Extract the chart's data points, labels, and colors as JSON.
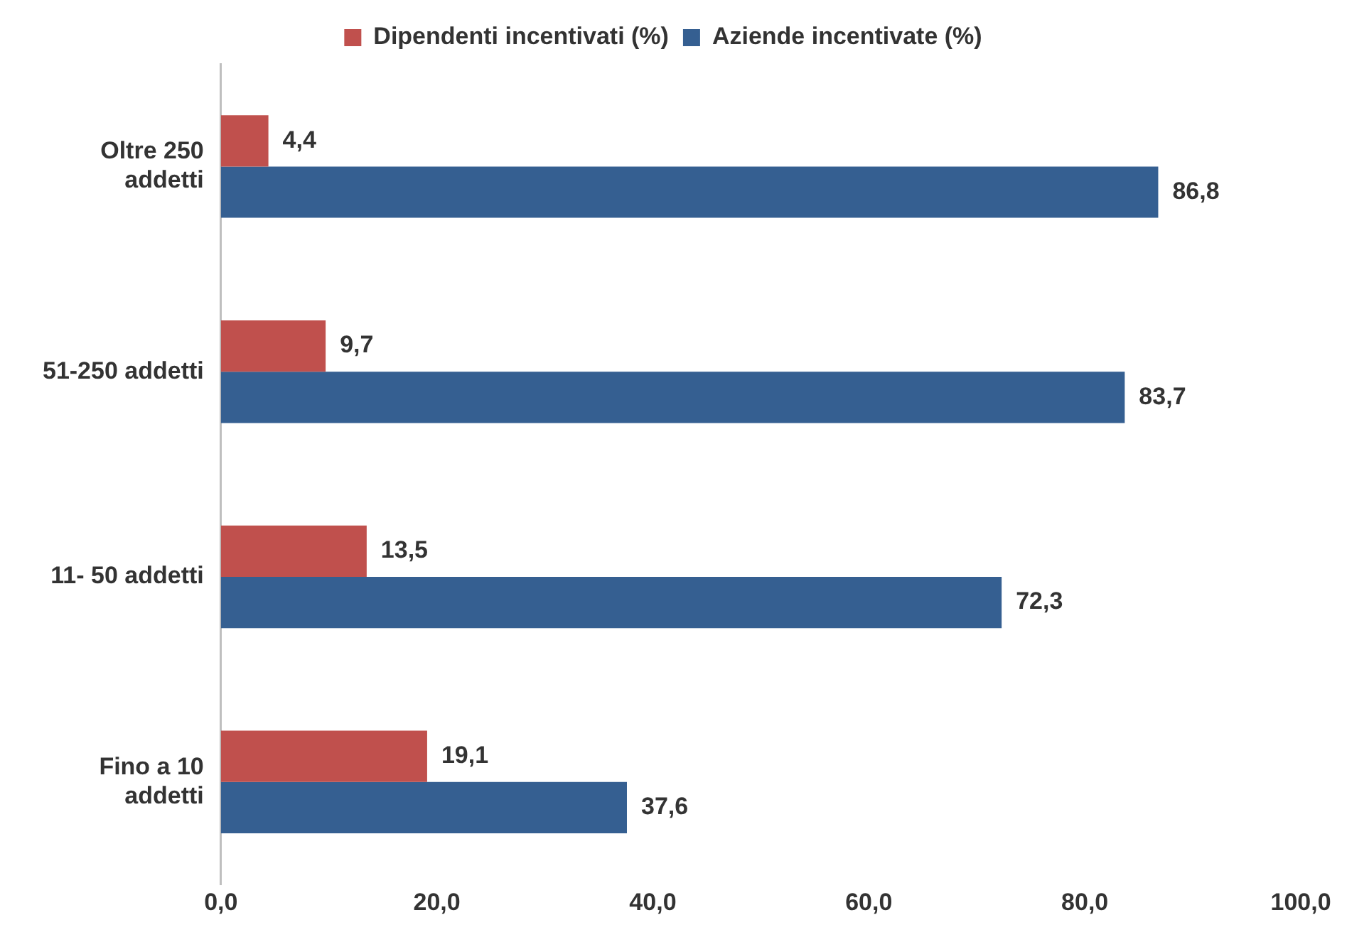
{
  "chart_data": {
    "type": "bar",
    "orientation": "horizontal",
    "categories": [
      "Oltre 250 addetti",
      "51-250 addetti",
      "11- 50 addetti",
      "Fino a 10 addetti"
    ],
    "series": [
      {
        "name": "Dipendenti incentivati (%)",
        "color": "#c0504d",
        "values": [
          4.4,
          9.7,
          13.5,
          19.1
        ],
        "value_labels": [
          "4,4",
          "9,7",
          "13,5",
          "19,1"
        ]
      },
      {
        "name": "Aziende incentivate (%)",
        "color": "#355f91",
        "values": [
          86.8,
          83.7,
          72.3,
          37.6
        ],
        "value_labels": [
          "86,8",
          "83,7",
          "72,3",
          "37,6"
        ]
      }
    ],
    "xlim": [
      0,
      100
    ],
    "xticks": [
      {
        "value": 0,
        "label": "0,0"
      },
      {
        "value": 20,
        "label": "20,0"
      },
      {
        "value": 40,
        "label": "40,0"
      },
      {
        "value": 60,
        "label": "60,0"
      },
      {
        "value": 80,
        "label": "80,0"
      },
      {
        "value": 100,
        "label": "100,0"
      }
    ],
    "grid": false,
    "legend": "top"
  }
}
